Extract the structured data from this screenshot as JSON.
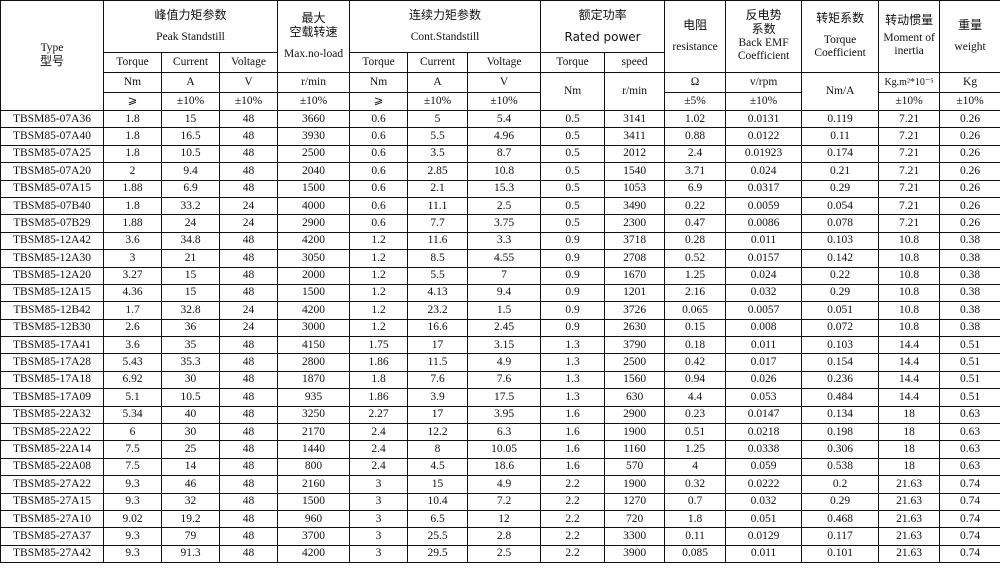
{
  "header": {
    "type_en": "Type",
    "type_cn": "型号",
    "peak_cn": "峰值力矩参数",
    "peak_en": "Peak Standstill",
    "maxspeed_cn1": "最大",
    "maxspeed_cn2": "空载转速",
    "maxspeed_en": "Max.no-load",
    "cont_cn": "连续力矩参数",
    "cont_en": "Cont.Standstill",
    "rated_cn": "额定功率",
    "rated_en": "Rated power",
    "res_cn": "电阻",
    "res_en": "resistance",
    "emf_cn1": "反电势",
    "emf_cn2": "系数",
    "emf_en1": "Back EMF",
    "emf_en2": "Coefficient",
    "tc_cn": "转矩系数",
    "tc_en1": "Torque",
    "tc_en2": "Coefficient",
    "inertia_cn": "转动惯量",
    "inertia_en1": "Moment of",
    "inertia_en2": "inertia",
    "weight_cn": "重量",
    "weight_en": "weight",
    "sub": [
      "Torque",
      "Current",
      "Voltage",
      "Torque",
      "Current",
      "Voltage",
      "Torque",
      "speed"
    ],
    "units": {
      "peak_torque": "Nm",
      "peak_current": "A",
      "peak_voltage": "V",
      "max_speed": "r/min",
      "cont_torque": "Nm",
      "cont_current": "A",
      "cont_voltage": "V",
      "rated_torque": "Nm",
      "rated_speed": "r/min",
      "resistance": "Ω",
      "emf": "v/rpm",
      "tc": "Nm/A",
      "inertia": "Kg.m²*10⁻⁵",
      "weight": "Kg"
    },
    "tolerances": {
      "peak_torque": "⩾",
      "peak_current": "±10%",
      "peak_voltage": "±10%",
      "max_speed": "±10%",
      "cont_torque": "⩾",
      "cont_current": "±10%",
      "cont_voltage": "±10%",
      "resistance": "±5%",
      "emf": "±10%",
      "inertia": "±10%",
      "weight": "±10%"
    }
  },
  "rows": [
    [
      "TBSM85-07A36",
      "1.8",
      "15",
      "48",
      "3660",
      "0.6",
      "5",
      "5.4",
      "0.5",
      "3141",
      "1.02",
      "0.0131",
      "0.119",
      "7.21",
      "0.26"
    ],
    [
      "TBSM85-07A40",
      "1.8",
      "16.5",
      "48",
      "3930",
      "0.6",
      "5.5",
      "4.96",
      "0.5",
      "3411",
      "0.88",
      "0.0122",
      "0.11",
      "7.21",
      "0.26"
    ],
    [
      "TBSM85-07A25",
      "1.8",
      "10.5",
      "48",
      "2500",
      "0.6",
      "3.5",
      "8.7",
      "0.5",
      "2012",
      "2.4",
      "0.01923",
      "0.174",
      "7.21",
      "0.26"
    ],
    [
      "TBSM85-07A20",
      "2",
      "9.4",
      "48",
      "2040",
      "0.6",
      "2.85",
      "10.8",
      "0.5",
      "1540",
      "3.71",
      "0.024",
      "0.21",
      "7.21",
      "0.26"
    ],
    [
      "TBSM85-07A15",
      "1.88",
      "6.9",
      "48",
      "1500",
      "0.6",
      "2.1",
      "15.3",
      "0.5",
      "1053",
      "6.9",
      "0.0317",
      "0.29",
      "7.21",
      "0.26"
    ],
    [
      "TBSM85-07B40",
      "1.8",
      "33.2",
      "24",
      "4000",
      "0.6",
      "11.1",
      "2.5",
      "0.5",
      "3490",
      "0.22",
      "0.0059",
      "0.054",
      "7.21",
      "0.26"
    ],
    [
      "TBSM85-07B29",
      "1.88",
      "24",
      "24",
      "2900",
      "0.6",
      "7.7",
      "3.75",
      "0.5",
      "2300",
      "0.47",
      "0.0086",
      "0.078",
      "7.21",
      "0.26"
    ],
    [
      "TBSM85-12A42",
      "3.6",
      "34.8",
      "48",
      "4200",
      "1.2",
      "11.6",
      "3.3",
      "0.9",
      "3718",
      "0.28",
      "0.011",
      "0.103",
      "10.8",
      "0.38"
    ],
    [
      "TBSM85-12A30",
      "3",
      "21",
      "48",
      "3050",
      "1.2",
      "8.5",
      "4.55",
      "0.9",
      "2708",
      "0.52",
      "0.0157",
      "0.142",
      "10.8",
      "0.38"
    ],
    [
      "TBSM85-12A20",
      "3.27",
      "15",
      "48",
      "2000",
      "1.2",
      "5.5",
      "7",
      "0.9",
      "1670",
      "1.25",
      "0.024",
      "0.22",
      "10.8",
      "0.38"
    ],
    [
      "TBSM85-12A15",
      "4.36",
      "15",
      "48",
      "1500",
      "1.2",
      "4.13",
      "9.4",
      "0.9",
      "1201",
      "2.16",
      "0.032",
      "0.29",
      "10.8",
      "0.38"
    ],
    [
      "TBSM85-12B42",
      "1.7",
      "32.8",
      "24",
      "4200",
      "1.2",
      "23.2",
      "1.5",
      "0.9",
      "3726",
      "0.065",
      "0.0057",
      "0.051",
      "10.8",
      "0.38"
    ],
    [
      "TBSM85-12B30",
      "2.6",
      "36",
      "24",
      "3000",
      "1.2",
      "16.6",
      "2.45",
      "0.9",
      "2630",
      "0.15",
      "0.008",
      "0.072",
      "10.8",
      "0.38"
    ],
    [
      "TBSM85-17A41",
      "3.6",
      "35",
      "48",
      "4150",
      "1.75",
      "17",
      "3.15",
      "1.3",
      "3790",
      "0.18",
      "0.011",
      "0.103",
      "14.4",
      "0.51"
    ],
    [
      "TBSM85-17A28",
      "5.43",
      "35.3",
      "48",
      "2800",
      "1.86",
      "11.5",
      "4.9",
      "1.3",
      "2500",
      "0.42",
      "0.017",
      "0.154",
      "14.4",
      "0.51"
    ],
    [
      "TBSM85-17A18",
      "6.92",
      "30",
      "48",
      "1870",
      "1.8",
      "7.6",
      "7.6",
      "1.3",
      "1560",
      "0.94",
      "0.026",
      "0.236",
      "14.4",
      "0.51"
    ],
    [
      "TBSM85-17A09",
      "5.1",
      "10.5",
      "48",
      "935",
      "1.86",
      "3.9",
      "17.5",
      "1.3",
      "630",
      "4.4",
      "0.053",
      "0.484",
      "14.4",
      "0.51"
    ],
    [
      "TBSM85-22A32",
      "5.34",
      "40",
      "48",
      "3250",
      "2.27",
      "17",
      "3.95",
      "1.6",
      "2900",
      "0.23",
      "0.0147",
      "0.134",
      "18",
      "0.63"
    ],
    [
      "TBSM85-22A22",
      "6",
      "30",
      "48",
      "2170",
      "2.4",
      "12.2",
      "6.3",
      "1.6",
      "1900",
      "0.51",
      "0.0218",
      "0.198",
      "18",
      "0.63"
    ],
    [
      "TBSM85-22A14",
      "7.5",
      "25",
      "48",
      "1440",
      "2.4",
      "8",
      "10.05",
      "1.6",
      "1160",
      "1.25",
      "0.0338",
      "0.306",
      "18",
      "0.63"
    ],
    [
      "TBSM85-22A08",
      "7.5",
      "14",
      "48",
      "800",
      "2.4",
      "4.5",
      "18.6",
      "1.6",
      "570",
      "4",
      "0.059",
      "0.538",
      "18",
      "0.63"
    ],
    [
      "TBSM85-27A22",
      "9.3",
      "46",
      "48",
      "2160",
      "3",
      "15",
      "4.9",
      "2.2",
      "1900",
      "0.32",
      "0.0222",
      "0.2",
      "21.63",
      "0.74"
    ],
    [
      "TBSM85-27A15",
      "9.3",
      "32",
      "48",
      "1500",
      "3",
      "10.4",
      "7.2",
      "2.2",
      "1270",
      "0.7",
      "0.032",
      "0.29",
      "21.63",
      "0.74"
    ],
    [
      "TBSM85-27A10",
      "9.02",
      "19.2",
      "48",
      "960",
      "3",
      "6.5",
      "12",
      "2.2",
      "720",
      "1.8",
      "0.051",
      "0.468",
      "21.63",
      "0.74"
    ],
    [
      "TBSM85-27A37",
      "9.3",
      "79",
      "48",
      "3700",
      "3",
      "25.5",
      "2.8",
      "2.2",
      "3300",
      "0.11",
      "0.0129",
      "0.117",
      "21.63",
      "0.74"
    ],
    [
      "TBSM85-27A42",
      "9.3",
      "91.3",
      "48",
      "4200",
      "3",
      "29.5",
      "2.5",
      "2.2",
      "3900",
      "0.085",
      "0.011",
      "0.101",
      "21.63",
      "0.74"
    ]
  ]
}
